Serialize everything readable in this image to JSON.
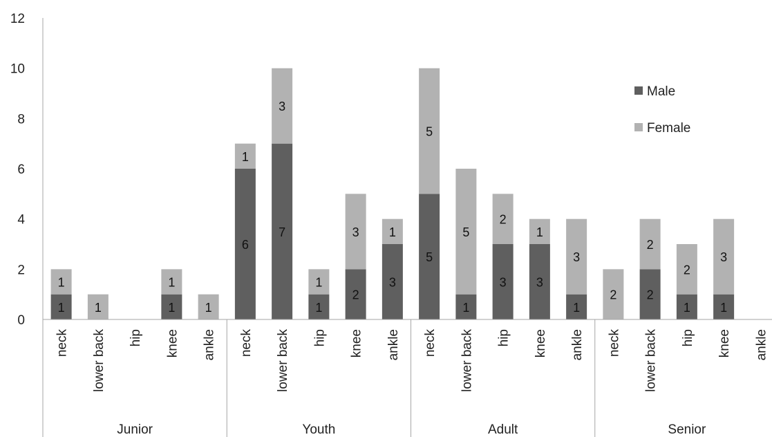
{
  "chart_data": {
    "type": "bar",
    "stacked": true,
    "title": "",
    "xlabel": "",
    "ylabel": "",
    "ylim": [
      0,
      12
    ],
    "yticks": [
      0,
      2,
      4,
      6,
      8,
      10,
      12
    ],
    "grid": false,
    "legend_position": "right",
    "groups": [
      {
        "name": "Junior",
        "categories": [
          "neck",
          "lower back",
          "hip",
          "knee",
          "ankle"
        ]
      },
      {
        "name": "Youth",
        "categories": [
          "neck",
          "lower back",
          "hip",
          "knee",
          "ankle"
        ]
      },
      {
        "name": "Adult",
        "categories": [
          "neck",
          "lower back",
          "hip",
          "knee",
          "ankle"
        ]
      },
      {
        "name": "Senior",
        "categories": [
          "neck",
          "lower back",
          "hip",
          "knee",
          "ankle"
        ]
      }
    ],
    "series": [
      {
        "name": "Male",
        "color": "#5f5f5f",
        "values": [
          1,
          0,
          0,
          1,
          0,
          6,
          7,
          1,
          2,
          3,
          5,
          1,
          3,
          3,
          1,
          0,
          2,
          1,
          1,
          0
        ]
      },
      {
        "name": "Female",
        "color": "#b2b2b2",
        "values": [
          1,
          1,
          0,
          1,
          1,
          1,
          3,
          1,
          3,
          1,
          5,
          5,
          2,
          1,
          3,
          2,
          2,
          2,
          3,
          0
        ]
      }
    ]
  }
}
